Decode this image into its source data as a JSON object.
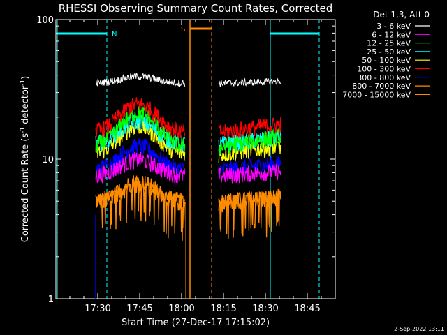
{
  "chart_data": {
    "type": "line",
    "title": "RHESSI Observing Summary Count Rates, Corrected",
    "xlabel": "Start Time (27-Dec-17 17:15:02)",
    "ylabel_main": "Corrected Count Rate (s",
    "ylabel_sup1": "-1",
    "ylabel_mid": " detector",
    "ylabel_sup2": "-1",
    "ylabel_end": ")",
    "yscale": "log",
    "ylim": [
      1,
      100
    ],
    "xlim_minutes": [
      0,
      100
    ],
    "x_ticks": [
      "17:30",
      "17:45",
      "18:00",
      "18:15",
      "18:30",
      "18:45"
    ],
    "x_tick_minutes": [
      15,
      30,
      45,
      60,
      75,
      90
    ],
    "y_ticks": [
      "1",
      "10",
      "100"
    ],
    "legend_title": "Det 1,3, Att 0",
    "legend_position": "right",
    "series": [
      {
        "name": "3 - 6 keV",
        "color": "#ffffff",
        "base": 35,
        "peak_gain": 0.12
      },
      {
        "name": "6 - 12 keV",
        "color": "#ff00ff",
        "base": 7.6,
        "peak_gain": 0.3
      },
      {
        "name": "12 - 25 keV",
        "color": "#00ff00",
        "base": 12.2,
        "peak_gain": 0.75
      },
      {
        "name": "25 - 50 keV",
        "color": "#00ffff",
        "base": 12.8,
        "peak_gain": 0.45
      },
      {
        "name": "50 - 100 keV",
        "color": "#ffff00",
        "base": 10.8,
        "peak_gain": 0.6
      },
      {
        "name": "100 - 300 keV",
        "color": "#ff0000",
        "base": 15.5,
        "peak_gain": 0.6
      },
      {
        "name": "300 - 800 keV",
        "color": "#0000ff",
        "base": 8.3,
        "peak_gain": 0.5
      },
      {
        "name": "800 - 7000 keV",
        "color": "#ff8c00",
        "base": 4.8,
        "peak_gain": 0.45
      },
      {
        "name": "7000 - 15000 keV",
        "color": "#ff8c00",
        "base": 5.0,
        "peak_gain": 0.3
      }
    ],
    "annotations": [
      {
        "label": "N",
        "color": "#00ffff",
        "type": "night"
      },
      {
        "label": "S",
        "color": "#ff8c00",
        "type": "saa"
      }
    ]
  },
  "footer_timestamp": "2-Sep-2022 13:11"
}
